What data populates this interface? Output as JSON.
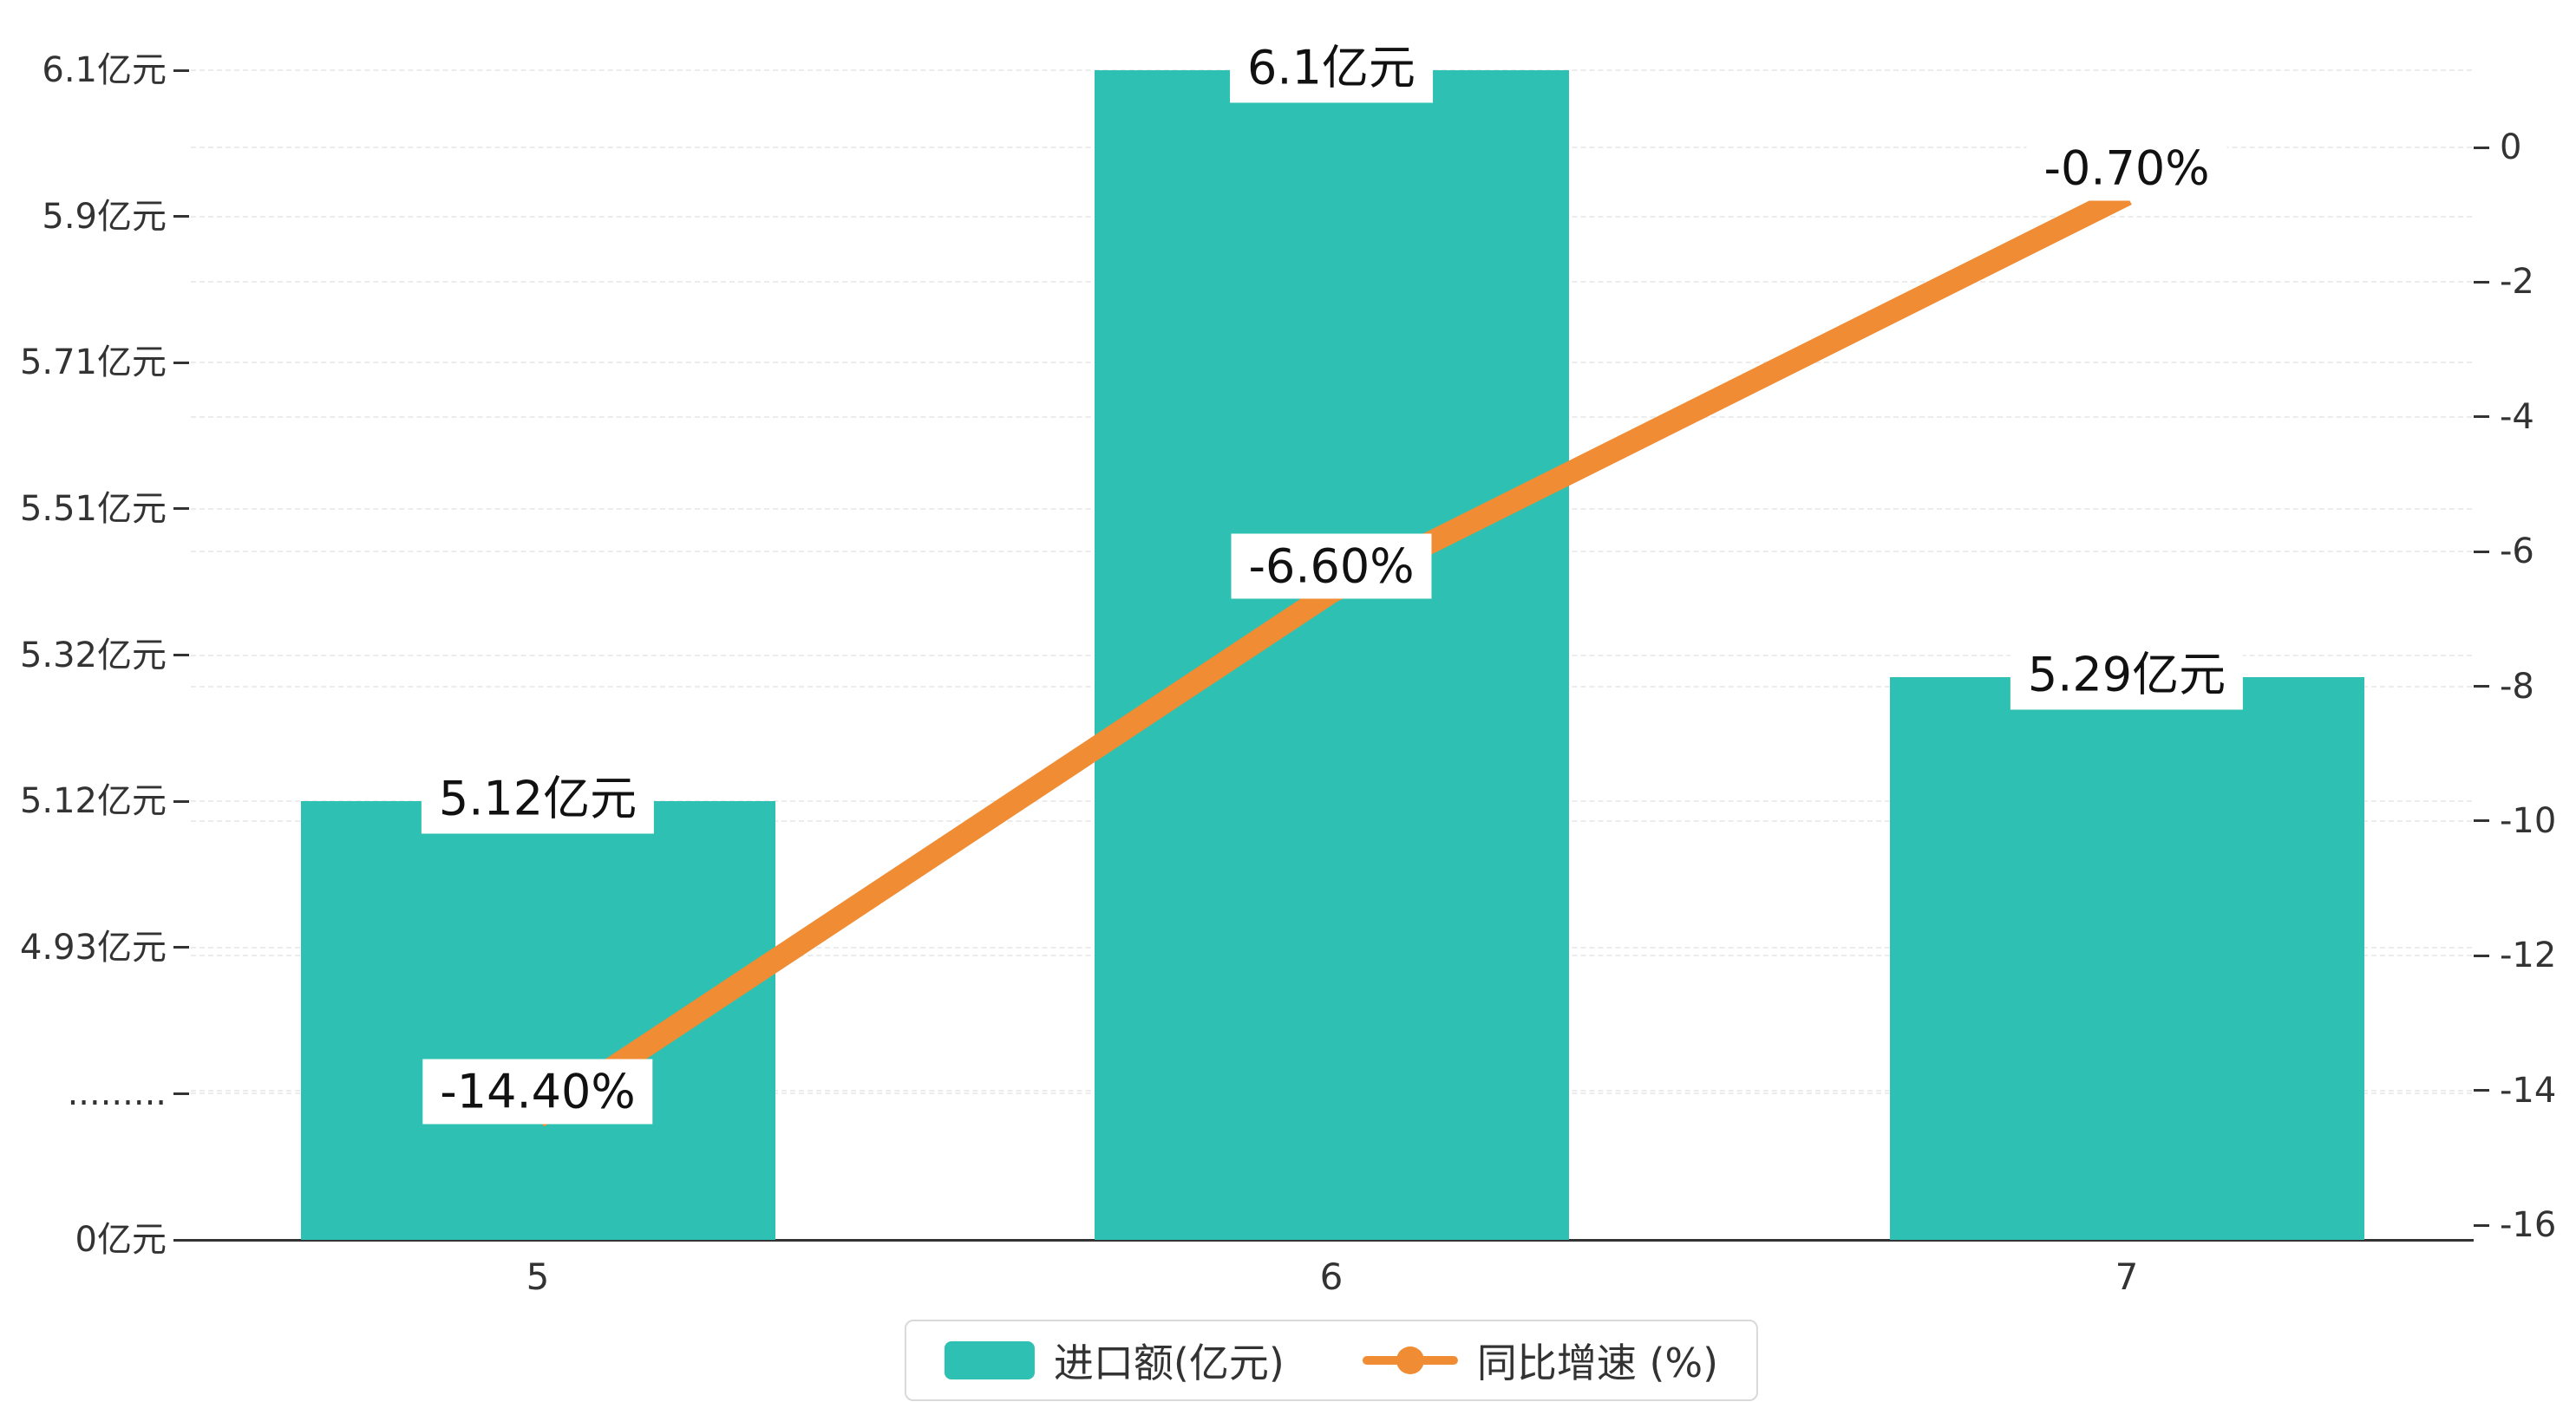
{
  "chart_data": {
    "type": "bar",
    "combo": "bar series on left axis + line series on right axis",
    "title": "",
    "categories": [
      "5",
      "6",
      "7"
    ],
    "series": [
      {
        "name": "进口额(亿元)",
        "type": "bar",
        "axis": "left",
        "values": [
          5.12,
          6.1,
          5.29
        ],
        "labels": [
          "5.12亿元",
          "6.1亿元",
          "5.29亿元"
        ],
        "color": "#2ec0b2"
      },
      {
        "name": "同比增速 (%)",
        "type": "line",
        "axis": "right",
        "values": [
          -14.4,
          -6.6,
          -0.7
        ],
        "labels": [
          "-14.40%",
          "-6.60%",
          "-0.70%"
        ],
        "color": "#f08c33"
      }
    ],
    "left_axis": {
      "unit": "亿元",
      "broken_axis": true,
      "tick_labels_bottom_up": [
        "0亿元",
        ".........",
        "4.93亿元",
        "5.12亿元",
        "5.32亿元",
        "5.51亿元",
        "5.71亿元",
        "5.9亿元",
        "6.1亿元"
      ],
      "tick_values_bottom_up": [
        0,
        null,
        4.93,
        5.12,
        5.32,
        5.51,
        5.71,
        5.9,
        6.1
      ]
    },
    "right_axis": {
      "max": 0,
      "min": -16,
      "tick_labels_top_down": [
        "0",
        "-2",
        "-4",
        "-6",
        "-8",
        "-10",
        "-12",
        "-14",
        "-16"
      ]
    },
    "x_axis": {
      "tick_labels": [
        "5",
        "6",
        "7"
      ]
    },
    "legend": {
      "position": "bottom",
      "items": [
        {
          "label": "进口额(亿元)",
          "marker": "bar-swatch"
        },
        {
          "label": "同比增速 (%)",
          "marker": "line-dot"
        }
      ]
    },
    "grid": "faint dashed horizontal lines"
  },
  "colors": {
    "bar": "#2ec0b2",
    "line": "#f08c33",
    "text": "#333333",
    "grid": "#ececec",
    "axis": "#333333",
    "label_bg": "#ffffff",
    "legend_border": "#d9d9d9"
  }
}
